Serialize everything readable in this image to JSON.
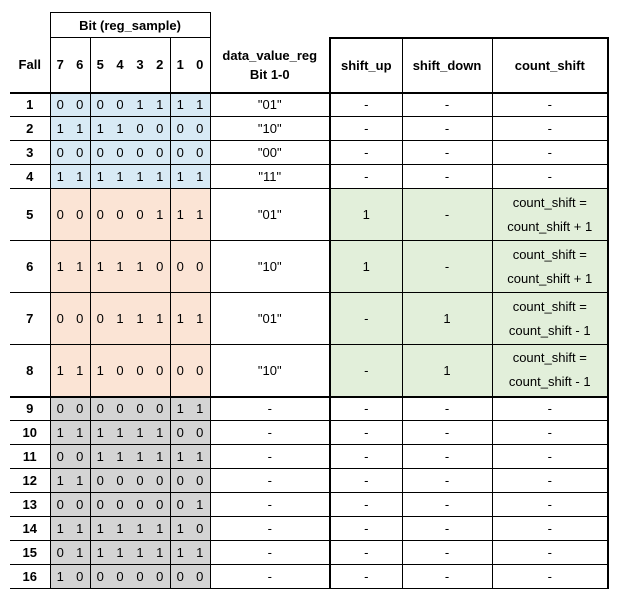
{
  "header": {
    "group_label": "Bit (reg_sample)",
    "fall": "Fall",
    "bits": [
      "7",
      "6",
      "5",
      "4",
      "3",
      "2",
      "1",
      "0"
    ],
    "data_value_line1": "data_value_reg",
    "data_value_line2": "Bit 1-0",
    "shift_up": "shift_up",
    "shift_down": "shift_down",
    "count_shift": "count_shift"
  },
  "rows": [
    {
      "fall": "1",
      "bits": [
        "0",
        "0",
        "0",
        "0",
        "1",
        "1",
        "1",
        "1"
      ],
      "data_value": "\"01\"",
      "shift_up": "-",
      "shift_down": "-",
      "count_shift_1": "-",
      "count_shift_2": "",
      "color": "blue"
    },
    {
      "fall": "2",
      "bits": [
        "1",
        "1",
        "1",
        "1",
        "0",
        "0",
        "0",
        "0"
      ],
      "data_value": "\"10\"",
      "shift_up": "-",
      "shift_down": "-",
      "count_shift_1": "-",
      "count_shift_2": "",
      "color": "blue"
    },
    {
      "fall": "3",
      "bits": [
        "0",
        "0",
        "0",
        "0",
        "0",
        "0",
        "0",
        "0"
      ],
      "data_value": "\"00\"",
      "shift_up": "-",
      "shift_down": "-",
      "count_shift_1": "-",
      "count_shift_2": "",
      "color": "blue"
    },
    {
      "fall": "4",
      "bits": [
        "1",
        "1",
        "1",
        "1",
        "1",
        "1",
        "1",
        "1"
      ],
      "data_value": "\"11\"",
      "shift_up": "-",
      "shift_down": "-",
      "count_shift_1": "-",
      "count_shift_2": "",
      "color": "blue"
    },
    {
      "fall": "5",
      "bits": [
        "0",
        "0",
        "0",
        "0",
        "0",
        "1",
        "1",
        "1"
      ],
      "data_value": "\"01\"",
      "shift_up": "1",
      "shift_down": "-",
      "count_shift_1": "count_shift =",
      "count_shift_2": "count_shift + 1",
      "color": "peach"
    },
    {
      "fall": "6",
      "bits": [
        "1",
        "1",
        "1",
        "1",
        "1",
        "0",
        "0",
        "0"
      ],
      "data_value": "\"10\"",
      "shift_up": "1",
      "shift_down": "-",
      "count_shift_1": "count_shift =",
      "count_shift_2": "count_shift + 1",
      "color": "peach"
    },
    {
      "fall": "7",
      "bits": [
        "0",
        "0",
        "0",
        "1",
        "1",
        "1",
        "1",
        "1"
      ],
      "data_value": "\"01\"",
      "shift_up": "-",
      "shift_down": "1",
      "count_shift_1": "count_shift =",
      "count_shift_2": "count_shift - 1",
      "color": "peach"
    },
    {
      "fall": "8",
      "bits": [
        "1",
        "1",
        "1",
        "0",
        "0",
        "0",
        "0",
        "0"
      ],
      "data_value": "\"10\"",
      "shift_up": "-",
      "shift_down": "1",
      "count_shift_1": "count_shift =",
      "count_shift_2": "count_shift - 1",
      "color": "peach"
    },
    {
      "fall": "9",
      "bits": [
        "0",
        "0",
        "0",
        "0",
        "0",
        "0",
        "1",
        "1"
      ],
      "data_value": "-",
      "shift_up": "-",
      "shift_down": "-",
      "count_shift_1": "-",
      "count_shift_2": "",
      "color": "gray"
    },
    {
      "fall": "10",
      "bits": [
        "1",
        "1",
        "1",
        "1",
        "1",
        "1",
        "0",
        "0"
      ],
      "data_value": "-",
      "shift_up": "-",
      "shift_down": "-",
      "count_shift_1": "-",
      "count_shift_2": "",
      "color": "gray"
    },
    {
      "fall": "11",
      "bits": [
        "0",
        "0",
        "1",
        "1",
        "1",
        "1",
        "1",
        "1"
      ],
      "data_value": "-",
      "shift_up": "-",
      "shift_down": "-",
      "count_shift_1": "-",
      "count_shift_2": "",
      "color": "gray"
    },
    {
      "fall": "12",
      "bits": [
        "1",
        "1",
        "0",
        "0",
        "0",
        "0",
        "0",
        "0"
      ],
      "data_value": "-",
      "shift_up": "-",
      "shift_down": "-",
      "count_shift_1": "-",
      "count_shift_2": "",
      "color": "gray"
    },
    {
      "fall": "13",
      "bits": [
        "0",
        "0",
        "0",
        "0",
        "0",
        "0",
        "0",
        "1"
      ],
      "data_value": "-",
      "shift_up": "-",
      "shift_down": "-",
      "count_shift_1": "-",
      "count_shift_2": "",
      "color": "gray"
    },
    {
      "fall": "14",
      "bits": [
        "1",
        "1",
        "1",
        "1",
        "1",
        "1",
        "1",
        "0"
      ],
      "data_value": "-",
      "shift_up": "-",
      "shift_down": "-",
      "count_shift_1": "-",
      "count_shift_2": "",
      "color": "gray"
    },
    {
      "fall": "15",
      "bits": [
        "0",
        "1",
        "1",
        "1",
        "1",
        "1",
        "1",
        "1"
      ],
      "data_value": "-",
      "shift_up": "-",
      "shift_down": "-",
      "count_shift_1": "-",
      "count_shift_2": "",
      "color": "gray"
    },
    {
      "fall": "16",
      "bits": [
        "1",
        "0",
        "0",
        "0",
        "0",
        "0",
        "0",
        "0"
      ],
      "data_value": "-",
      "shift_up": "-",
      "shift_down": "-",
      "count_shift_1": "-",
      "count_shift_2": "",
      "color": "gray"
    }
  ],
  "colors": {
    "blue": "#d8eaf5",
    "peach": "#fbe4d5",
    "green": "#e2efda",
    "gray": "#d4d4d4"
  }
}
